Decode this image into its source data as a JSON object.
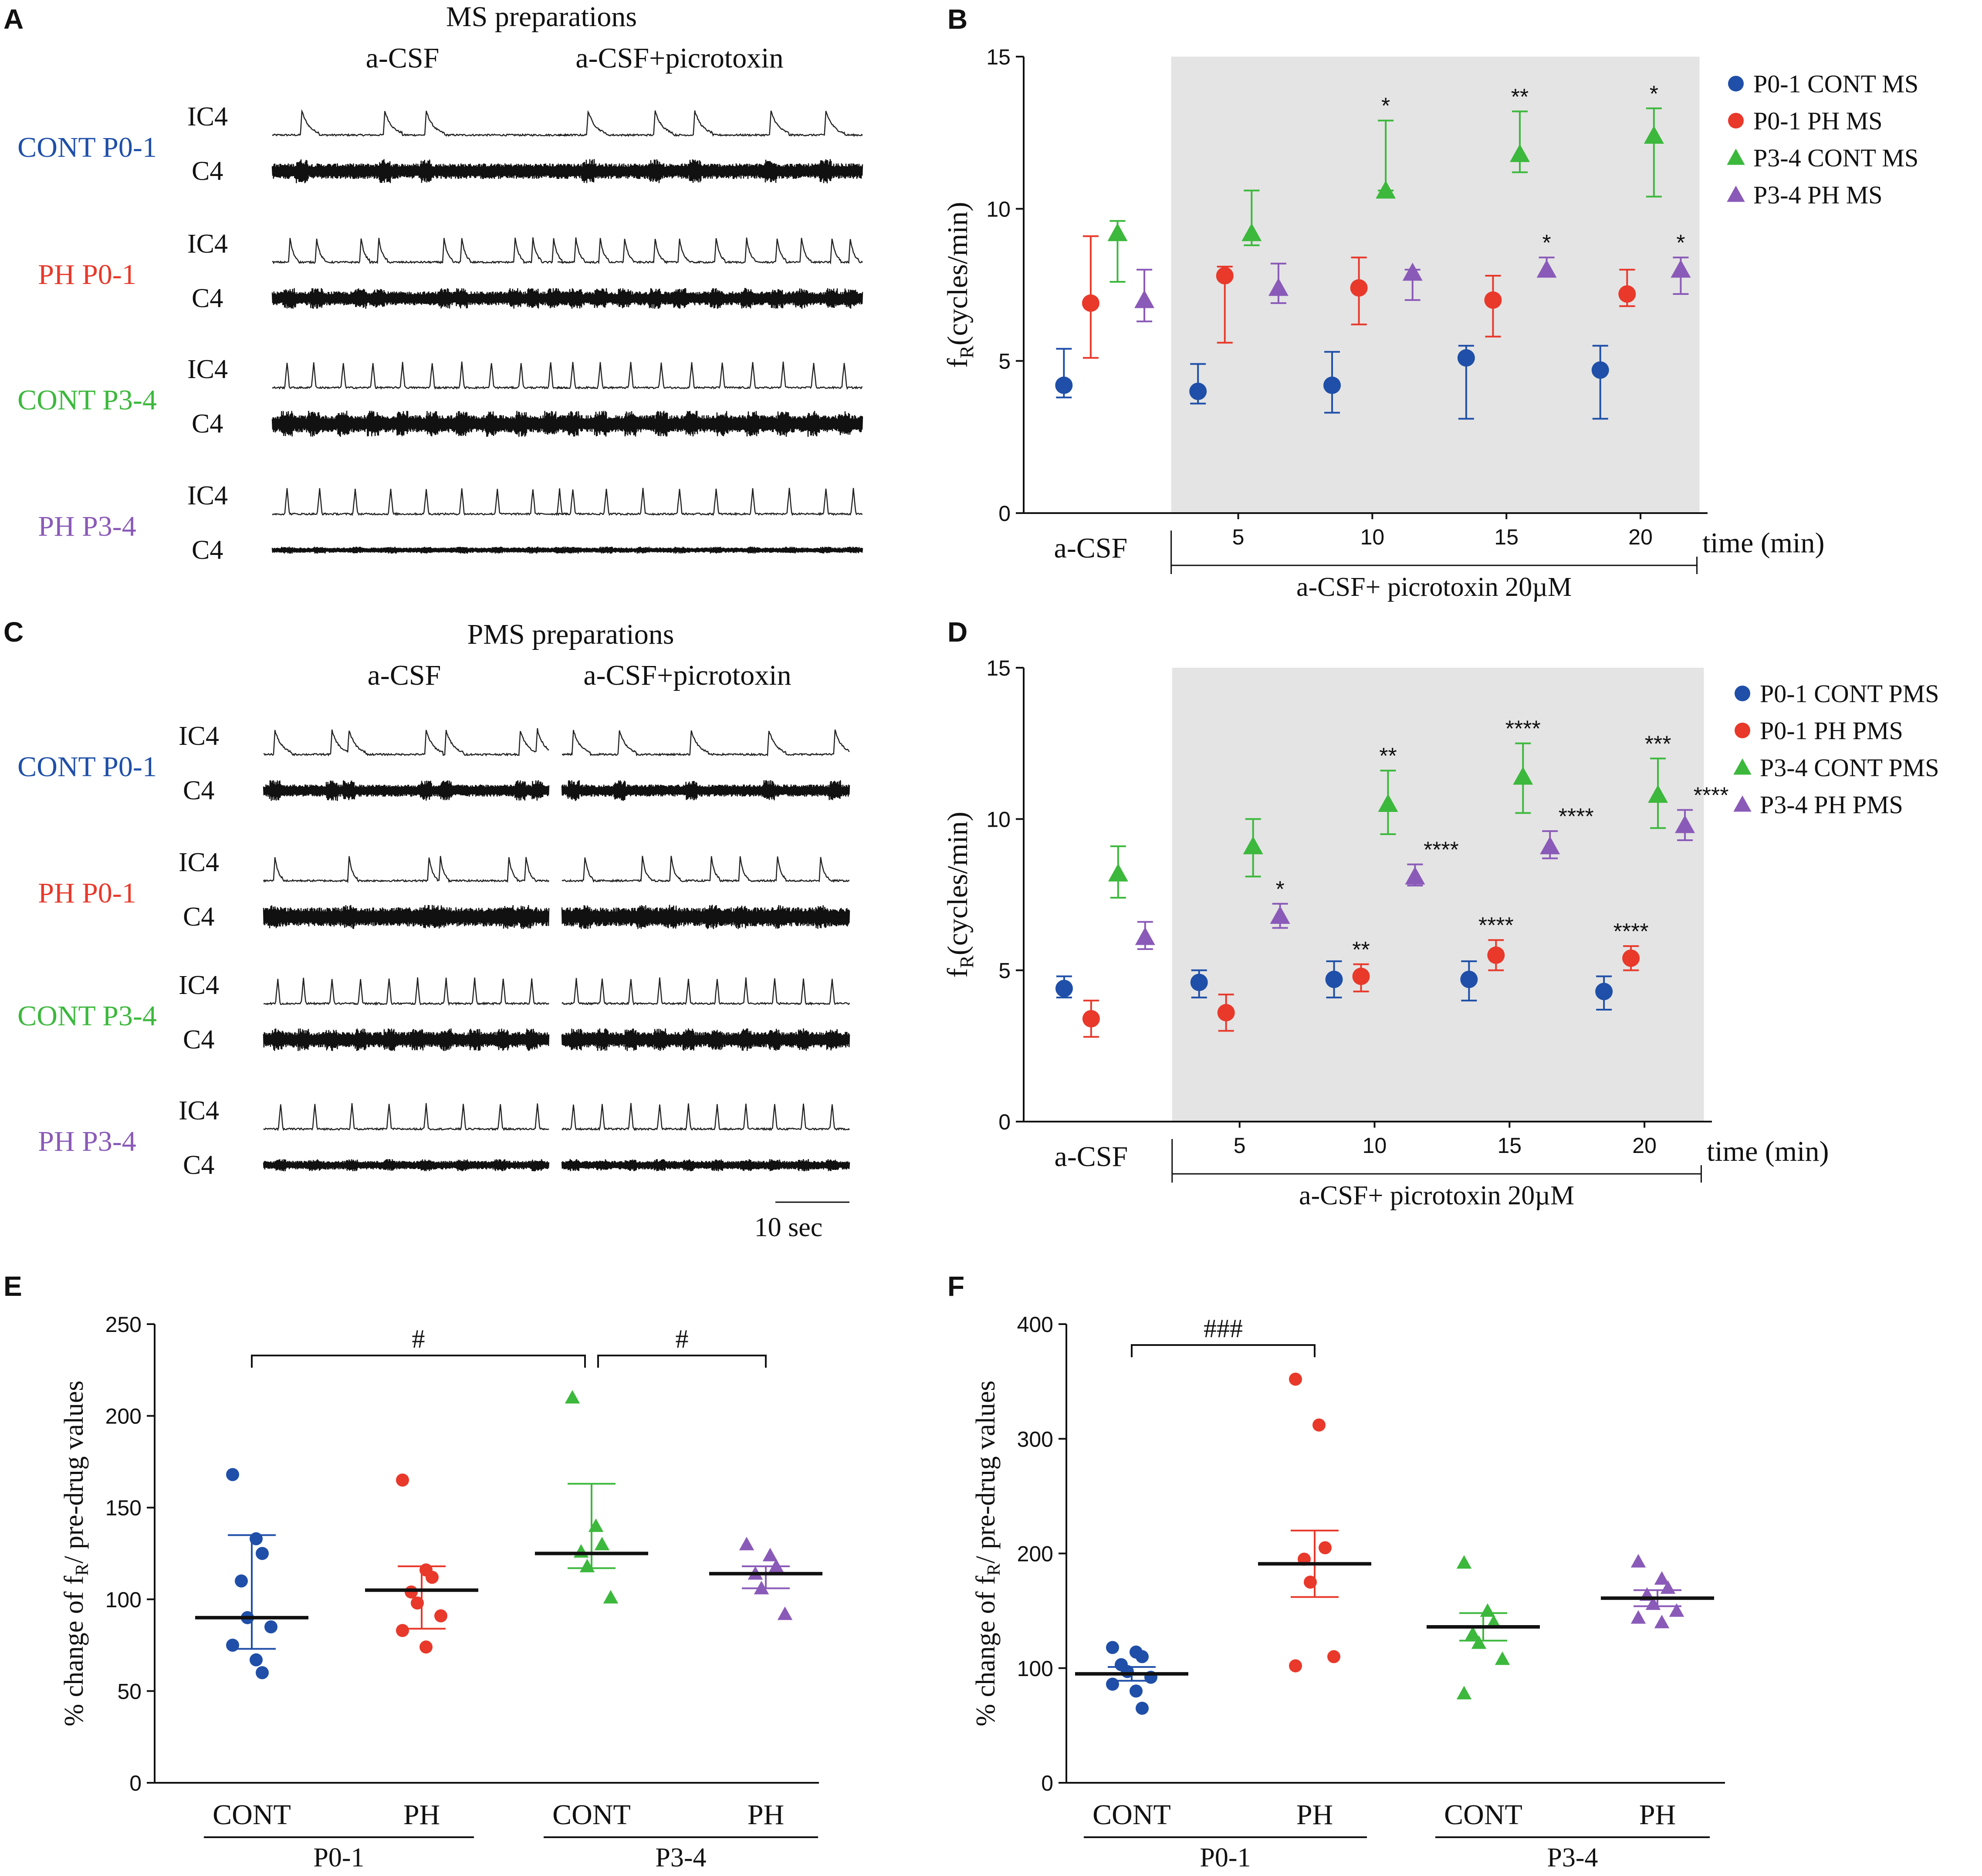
{
  "colors": {
    "blue": "#1f4fa8",
    "red": "#e8392b",
    "green": "#3cb83c",
    "purple": "#8a5ab8",
    "shade": "#e4e4e4",
    "black": "#111111"
  },
  "panels": {
    "A": {
      "letter": "A",
      "title": "MS preparations",
      "col_acsf": "a-CSF",
      "col_picro": "a-CSF+picrotoxin",
      "rows": [
        {
          "group": "CONT P0-1",
          "color": "blue",
          "label_ic4": "IC4",
          "label_c4": "C4"
        },
        {
          "group": "PH P0-1",
          "color": "red",
          "label_ic4": "IC4",
          "label_c4": "C4"
        },
        {
          "group": "CONT P3-4",
          "color": "green",
          "label_ic4": "IC4",
          "label_c4": "C4"
        },
        {
          "group": "PH P3-4",
          "color": "purple",
          "label_ic4": "IC4",
          "label_c4": "C4"
        }
      ]
    },
    "C": {
      "letter": "C",
      "title": "PMS preparations",
      "col_acsf": "a-CSF",
      "col_picro": "a-CSF+picrotoxin",
      "rows": [
        {
          "group": "CONT P0-1",
          "color": "blue",
          "label_ic4": "IC4",
          "label_c4": "C4"
        },
        {
          "group": "PH P0-1",
          "color": "red",
          "label_ic4": "IC4",
          "label_c4": "C4"
        },
        {
          "group": "CONT P3-4",
          "color": "green",
          "label_ic4": "IC4",
          "label_c4": "C4"
        },
        {
          "group": "PH P3-4",
          "color": "purple",
          "label_ic4": "IC4",
          "label_c4": "C4"
        }
      ],
      "scale_bar": "10 sec"
    }
  },
  "chart_data": [
    {
      "panel": "B",
      "type": "scatter",
      "title": "",
      "ylabel_main": "f",
      "ylabel_sub": "R",
      "ylabel_rest": "(cycles/min)",
      "xlabel": "time (min)",
      "ylim": [
        0,
        15
      ],
      "yticks": [
        0,
        5,
        10,
        15
      ],
      "xticks": [
        5,
        10,
        15,
        20
      ],
      "xlim": [
        -3,
        22.5
      ],
      "shaded_range": [
        2.5,
        22.2
      ],
      "baseline_label": "a-CSF",
      "drug_label": "a-CSF+ picrotoxin 20µM",
      "legend": [
        "P0-1 CONT MS",
        "P0-1 PH MS",
        "P3-4 CONT MS",
        "P3-4 PH MS"
      ],
      "series": [
        {
          "name": "P0-1 CONT MS",
          "color": "blue",
          "marker": "circle",
          "points": [
            {
              "x": -1.5,
              "y": 4.2,
              "lo": 3.8,
              "hi": 5.4
            },
            {
              "x": 3.5,
              "y": 4.0,
              "lo": 3.6,
              "hi": 4.9
            },
            {
              "x": 8.5,
              "y": 4.2,
              "lo": 3.3,
              "hi": 5.3
            },
            {
              "x": 13.5,
              "y": 5.1,
              "lo": 3.1,
              "hi": 5.5
            },
            {
              "x": 18.5,
              "y": 4.7,
              "lo": 3.1,
              "hi": 5.5
            }
          ],
          "stars": [
            "",
            "",
            "",
            "",
            ""
          ]
        },
        {
          "name": "P0-1 PH MS",
          "color": "red",
          "marker": "circle",
          "points": [
            {
              "x": -0.5,
              "y": 6.9,
              "lo": 5.1,
              "hi": 9.1
            },
            {
              "x": 4.5,
              "y": 7.8,
              "lo": 5.6,
              "hi": 8.1
            },
            {
              "x": 9.5,
              "y": 7.4,
              "lo": 6.2,
              "hi": 8.4
            },
            {
              "x": 14.5,
              "y": 7.0,
              "lo": 5.8,
              "hi": 7.8
            },
            {
              "x": 19.5,
              "y": 7.2,
              "lo": 6.8,
              "hi": 8.0
            }
          ],
          "stars": [
            "",
            "",
            "",
            "",
            ""
          ]
        },
        {
          "name": "P3-4 CONT MS",
          "color": "green",
          "marker": "triangle",
          "points": [
            {
              "x": 0.5,
              "y": 9.2,
              "lo": 7.6,
              "hi": 9.6
            },
            {
              "x": 5.5,
              "y": 9.2,
              "lo": 8.8,
              "hi": 10.6
            },
            {
              "x": 10.5,
              "y": 10.6,
              "lo": 10.6,
              "hi": 12.9
            },
            {
              "x": 15.5,
              "y": 11.8,
              "lo": 11.2,
              "hi": 13.2
            },
            {
              "x": 20.5,
              "y": 12.4,
              "lo": 10.4,
              "hi": 13.3
            }
          ],
          "stars": [
            "",
            "",
            "*",
            "**",
            "*"
          ]
        },
        {
          "name": "P3-4 PH MS",
          "color": "purple",
          "marker": "triangle",
          "points": [
            {
              "x": 1.5,
              "y": 7.0,
              "lo": 6.3,
              "hi": 8.0
            },
            {
              "x": 6.5,
              "y": 7.4,
              "lo": 6.9,
              "hi": 8.2
            },
            {
              "x": 11.5,
              "y": 7.9,
              "lo": 7.0,
              "hi": 8.0
            },
            {
              "x": 16.5,
              "y": 8.0,
              "lo": 7.8,
              "hi": 8.4
            },
            {
              "x": 21.5,
              "y": 8.0,
              "lo": 7.2,
              "hi": 8.4
            }
          ],
          "stars": [
            "",
            "",
            "",
            "*",
            "*"
          ]
        }
      ]
    },
    {
      "panel": "D",
      "type": "scatter",
      "title": "",
      "ylabel_main": "f",
      "ylabel_sub": "R",
      "ylabel_rest": "(cycles/min)",
      "xlabel": "time (min)",
      "ylim": [
        0,
        15
      ],
      "yticks": [
        0,
        5,
        10,
        15
      ],
      "xticks": [
        5,
        10,
        15,
        20
      ],
      "xlim": [
        -3,
        22.5
      ],
      "shaded_range": [
        2.5,
        22.2
      ],
      "baseline_label": "a-CSF",
      "drug_label": "a-CSF+ picrotoxin 20µM",
      "legend": [
        "P0-1 CONT PMS",
        "P0-1 PH PMS",
        "P3-4 CONT PMS",
        "P3-4 PH PMS"
      ],
      "series": [
        {
          "name": "P0-1 CONT PMS",
          "color": "blue",
          "marker": "circle",
          "points": [
            {
              "x": -1.5,
              "y": 4.4,
              "lo": 4.1,
              "hi": 4.8
            },
            {
              "x": 3.5,
              "y": 4.6,
              "lo": 4.1,
              "hi": 5.0
            },
            {
              "x": 8.5,
              "y": 4.7,
              "lo": 4.1,
              "hi": 5.3
            },
            {
              "x": 13.5,
              "y": 4.7,
              "lo": 4.0,
              "hi": 5.3
            },
            {
              "x": 18.5,
              "y": 4.3,
              "lo": 3.7,
              "hi": 4.8
            }
          ],
          "stars": [
            "",
            "",
            "",
            "",
            ""
          ]
        },
        {
          "name": "P0-1 PH PMS",
          "color": "red",
          "marker": "circle",
          "points": [
            {
              "x": -0.5,
              "y": 3.4,
              "lo": 2.8,
              "hi": 4.0
            },
            {
              "x": 4.5,
              "y": 3.6,
              "lo": 3.0,
              "hi": 4.2
            },
            {
              "x": 9.5,
              "y": 4.8,
              "lo": 4.3,
              "hi": 5.2
            },
            {
              "x": 14.5,
              "y": 5.5,
              "lo": 5.0,
              "hi": 6.0
            },
            {
              "x": 19.5,
              "y": 5.4,
              "lo": 5.0,
              "hi": 5.8
            }
          ],
          "stars": [
            "",
            "",
            "**",
            "****",
            "****"
          ]
        },
        {
          "name": "P3-4 CONT PMS",
          "color": "green",
          "marker": "triangle",
          "points": [
            {
              "x": 0.5,
              "y": 8.2,
              "lo": 7.4,
              "hi": 9.1
            },
            {
              "x": 5.5,
              "y": 9.1,
              "lo": 8.1,
              "hi": 10.0
            },
            {
              "x": 10.5,
              "y": 10.5,
              "lo": 9.5,
              "hi": 11.6
            },
            {
              "x": 15.5,
              "y": 11.4,
              "lo": 10.2,
              "hi": 12.5
            },
            {
              "x": 20.5,
              "y": 10.8,
              "lo": 9.7,
              "hi": 12.0
            }
          ],
          "stars": [
            "",
            "",
            "**",
            "****",
            "***"
          ]
        },
        {
          "name": "P3-4 PH PMS",
          "color": "purple",
          "marker": "triangle",
          "points": [
            {
              "x": 1.5,
              "y": 6.1,
              "lo": 5.7,
              "hi": 6.6
            },
            {
              "x": 6.5,
              "y": 6.8,
              "lo": 6.4,
              "hi": 7.2
            },
            {
              "x": 11.5,
              "y": 8.1,
              "lo": 7.8,
              "hi": 8.5
            },
            {
              "x": 16.5,
              "y": 9.1,
              "lo": 8.7,
              "hi": 9.6
            },
            {
              "x": 21.5,
              "y": 9.8,
              "lo": 9.3,
              "hi": 10.3
            }
          ],
          "stars": [
            "",
            "*",
            "****",
            "****",
            "****"
          ]
        }
      ]
    },
    {
      "panel": "E",
      "type": "scatter",
      "title": "",
      "ylabel_pre": "% change of f",
      "ylabel_sub": "R",
      "ylabel_post": "/ pre-drug values",
      "ylim": [
        0,
        250
      ],
      "yticks": [
        0,
        50,
        100,
        150,
        200,
        250
      ],
      "categories": [
        "CONT",
        "PH",
        "CONT",
        "PH"
      ],
      "age_groups": [
        "P0-1",
        "P3-4"
      ],
      "groups": [
        {
          "name": "CONT",
          "age": "P0-1",
          "color": "blue",
          "marker": "circle",
          "mean": 90,
          "lo": 73,
          "hi": 135,
          "points": [
            168,
            133,
            125,
            110,
            90,
            85,
            75,
            67,
            60
          ]
        },
        {
          "name": "PH",
          "age": "P0-1",
          "color": "red",
          "marker": "circle",
          "mean": 105,
          "lo": 84,
          "hi": 118,
          "points": [
            165,
            116,
            112,
            104,
            98,
            91,
            83,
            74
          ]
        },
        {
          "name": "CONT",
          "age": "P3-4",
          "color": "green",
          "marker": "triangle",
          "mean": 125,
          "lo": 117,
          "hi": 163,
          "points": [
            210,
            140,
            130,
            126,
            118,
            101
          ]
        },
        {
          "name": "PH",
          "age": "P3-4",
          "color": "purple",
          "marker": "triangle",
          "mean": 114,
          "lo": 106,
          "hi": 118,
          "points": [
            130,
            124,
            118,
            114,
            106,
            92
          ]
        }
      ],
      "brackets": [
        {
          "from": 0,
          "to": 2,
          "label": "#"
        },
        {
          "from": 2,
          "to": 3,
          "label": "#"
        }
      ]
    },
    {
      "panel": "F",
      "type": "scatter",
      "title": "",
      "ylabel_pre": "% change of f",
      "ylabel_sub": "R",
      "ylabel_post": "/ pre-drug values",
      "ylim": [
        0,
        400
      ],
      "yticks": [
        0,
        100,
        200,
        300,
        400
      ],
      "categories": [
        "CONT",
        "PH",
        "CONT",
        "PH"
      ],
      "age_groups": [
        "P0-1",
        "P3-4"
      ],
      "groups": [
        {
          "name": "CONT",
          "age": "P0-1",
          "color": "blue",
          "marker": "circle",
          "mean": 95,
          "lo": 89,
          "hi": 101,
          "points": [
            118,
            114,
            110,
            103,
            97,
            92,
            86,
            80,
            65
          ]
        },
        {
          "name": "PH",
          "age": "P0-1",
          "color": "red",
          "marker": "circle",
          "mean": 191,
          "lo": 162,
          "hi": 220,
          "points": [
            352,
            312,
            205,
            195,
            175,
            110,
            102
          ]
        },
        {
          "name": "CONT",
          "age": "P3-4",
          "color": "green",
          "marker": "triangle",
          "mean": 136,
          "lo": 124,
          "hi": 148,
          "points": [
            192,
            150,
            140,
            130,
            122,
            108,
            78
          ]
        },
        {
          "name": "PH",
          "age": "P3-4",
          "color": "purple",
          "marker": "triangle",
          "mean": 161,
          "lo": 154,
          "hi": 168,
          "points": [
            193,
            178,
            170,
            164,
            156,
            150,
            144,
            140
          ]
        }
      ],
      "brackets": [
        {
          "from": 0,
          "to": 1,
          "label": "###"
        }
      ]
    }
  ]
}
